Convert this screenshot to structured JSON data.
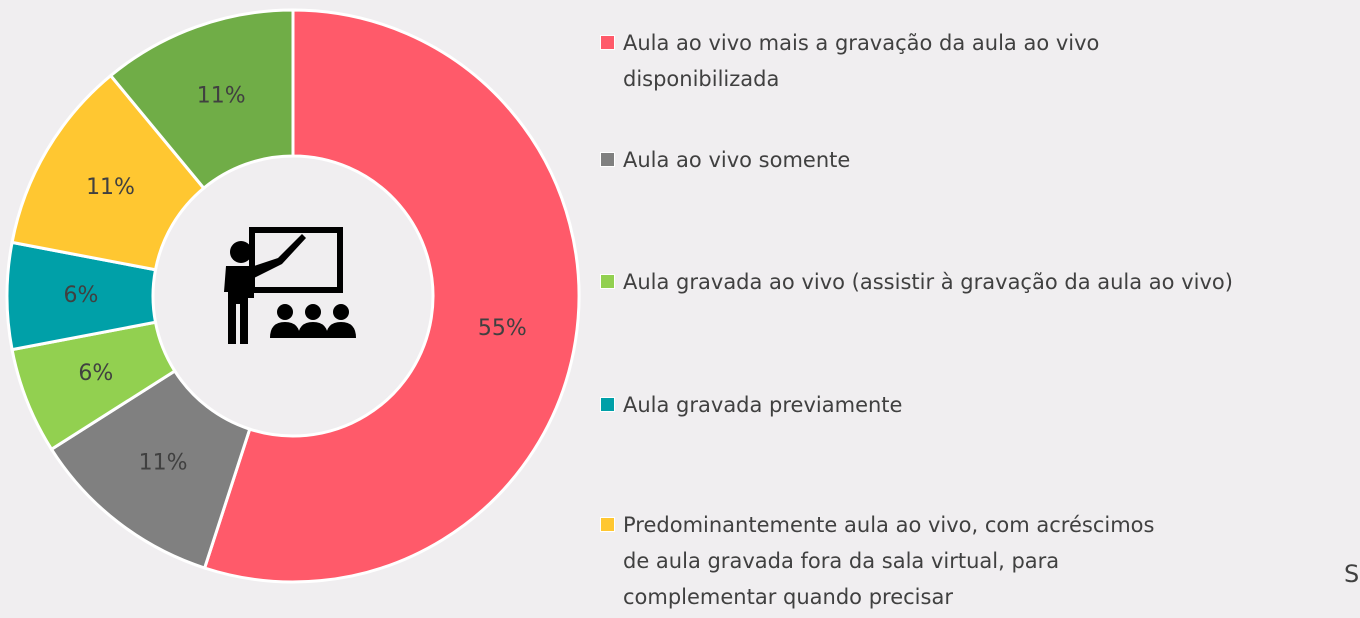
{
  "chart_data": {
    "type": "donut",
    "categories": [
      "Aula ao vivo mais a gravação da aula ao vivo disponibilizada",
      "Aula ao vivo somente",
      "Aula gravada ao vivo (assistir à gravação da aula ao vivo)",
      "Aula gravada previamente",
      "Predominantemente aula ao vivo, com acréscimos de aula gravada fora da sala virtual, para complementar quando precisar",
      null
    ],
    "values": [
      55,
      11,
      6,
      6,
      11,
      11
    ],
    "value_labels": [
      "55%",
      "11%",
      "6%",
      "6%",
      "11%",
      "11%"
    ],
    "colors": [
      "#ff5a6a",
      "#808080",
      "#92d050",
      "#00a0a8",
      "#ffc731",
      "#70ad47"
    ],
    "annotation": "S"
  }
}
